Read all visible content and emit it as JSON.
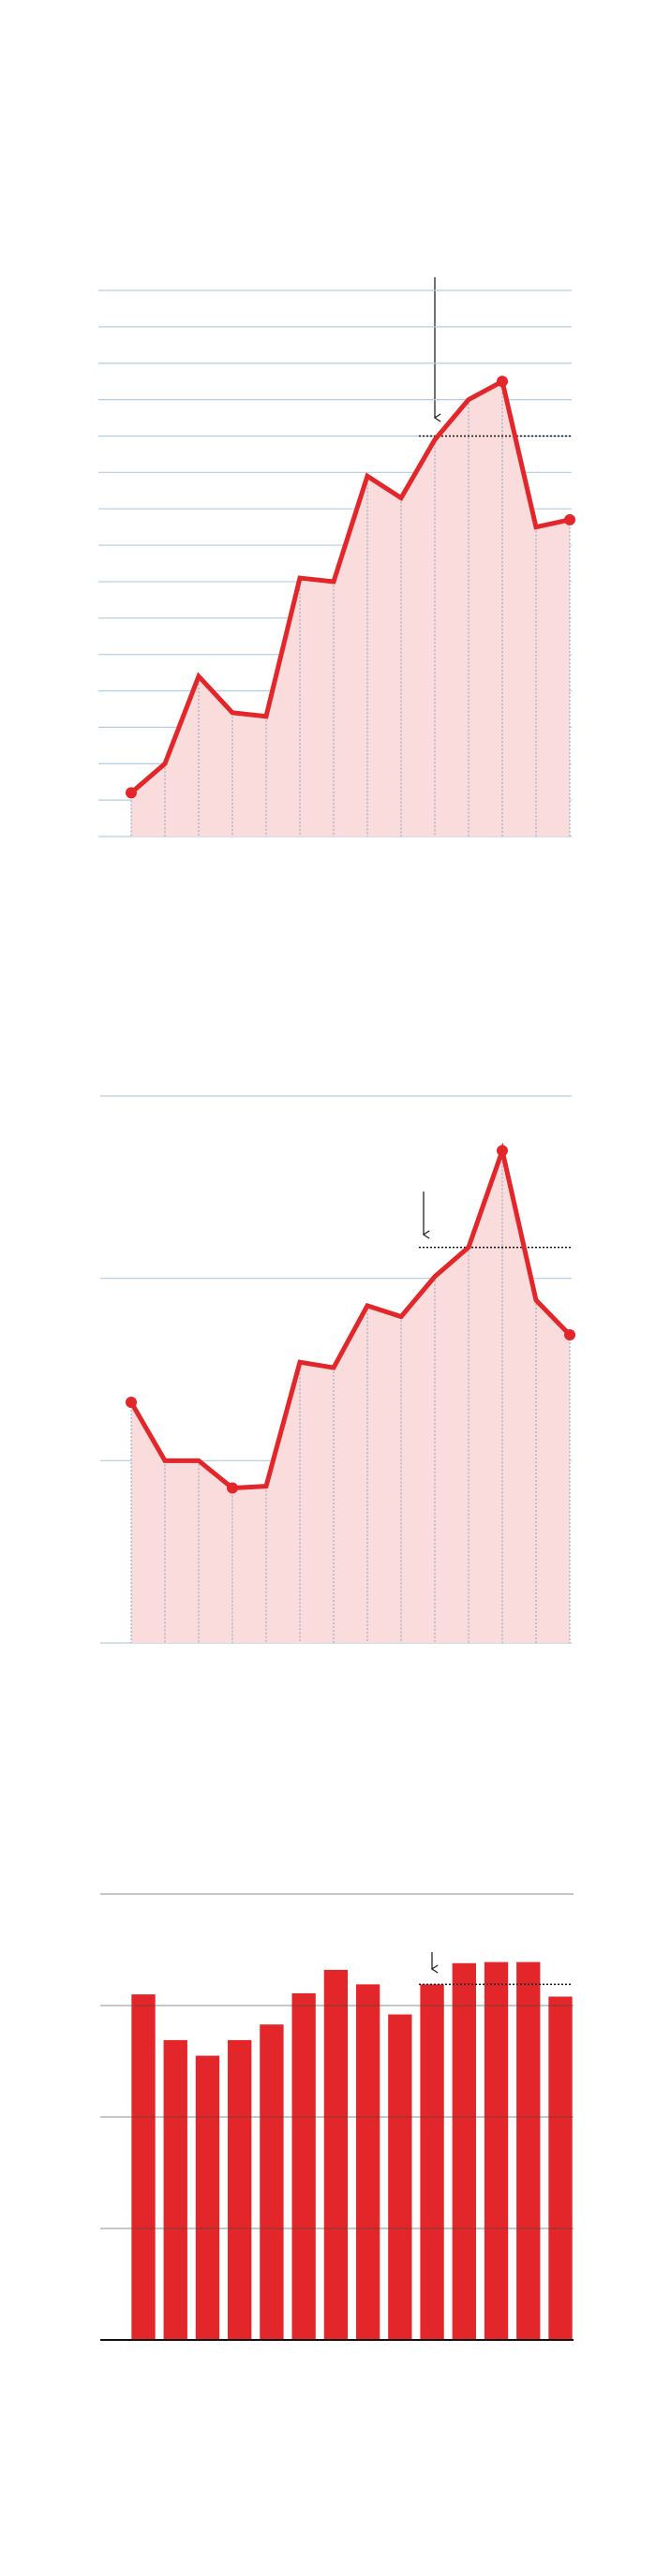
{
  "chart_data": [
    {
      "type": "line",
      "color": "#e3262a",
      "fill": "#fadcdc",
      "grid_color": "#b3cde0",
      "values": [
        1.2,
        2.0,
        4.4,
        3.4,
        3.3,
        7.1,
        7.0,
        9.9,
        9.3,
        10.9,
        12.0,
        12.5,
        8.5,
        8.7
      ],
      "ylim": [
        0,
        15
      ],
      "yticks": [
        0,
        1,
        2,
        3,
        4,
        5,
        6,
        7,
        8,
        9,
        10,
        11,
        12,
        13,
        14,
        15
      ],
      "grid": true,
      "reference": 11.0
    },
    {
      "type": "line",
      "color": "#e3262a",
      "fill": "#fadcdc",
      "grid_color": "#b3cde0",
      "values": [
        1.32,
        1.0,
        1.0,
        0.85,
        0.86,
        1.54,
        1.51,
        1.85,
        1.79,
        2.01,
        2.17,
        2.7,
        1.88,
        1.69
      ],
      "ylim": [
        0,
        3
      ],
      "yticks": [
        0,
        1,
        2,
        3
      ],
      "grid": true,
      "reference": 2.17
    },
    {
      "type": "bar",
      "color": "#e3262a",
      "grid_color": "#b3cde0",
      "values": [
        3.1,
        2.69,
        2.55,
        2.69,
        2.83,
        3.11,
        3.32,
        3.19,
        2.92,
        3.19,
        3.38,
        3.39,
        3.39,
        3.08
      ],
      "ylim": [
        0,
        4
      ],
      "yticks": [
        0,
        1,
        2,
        3,
        4
      ],
      "grid": true,
      "reference": 3.19
    }
  ]
}
